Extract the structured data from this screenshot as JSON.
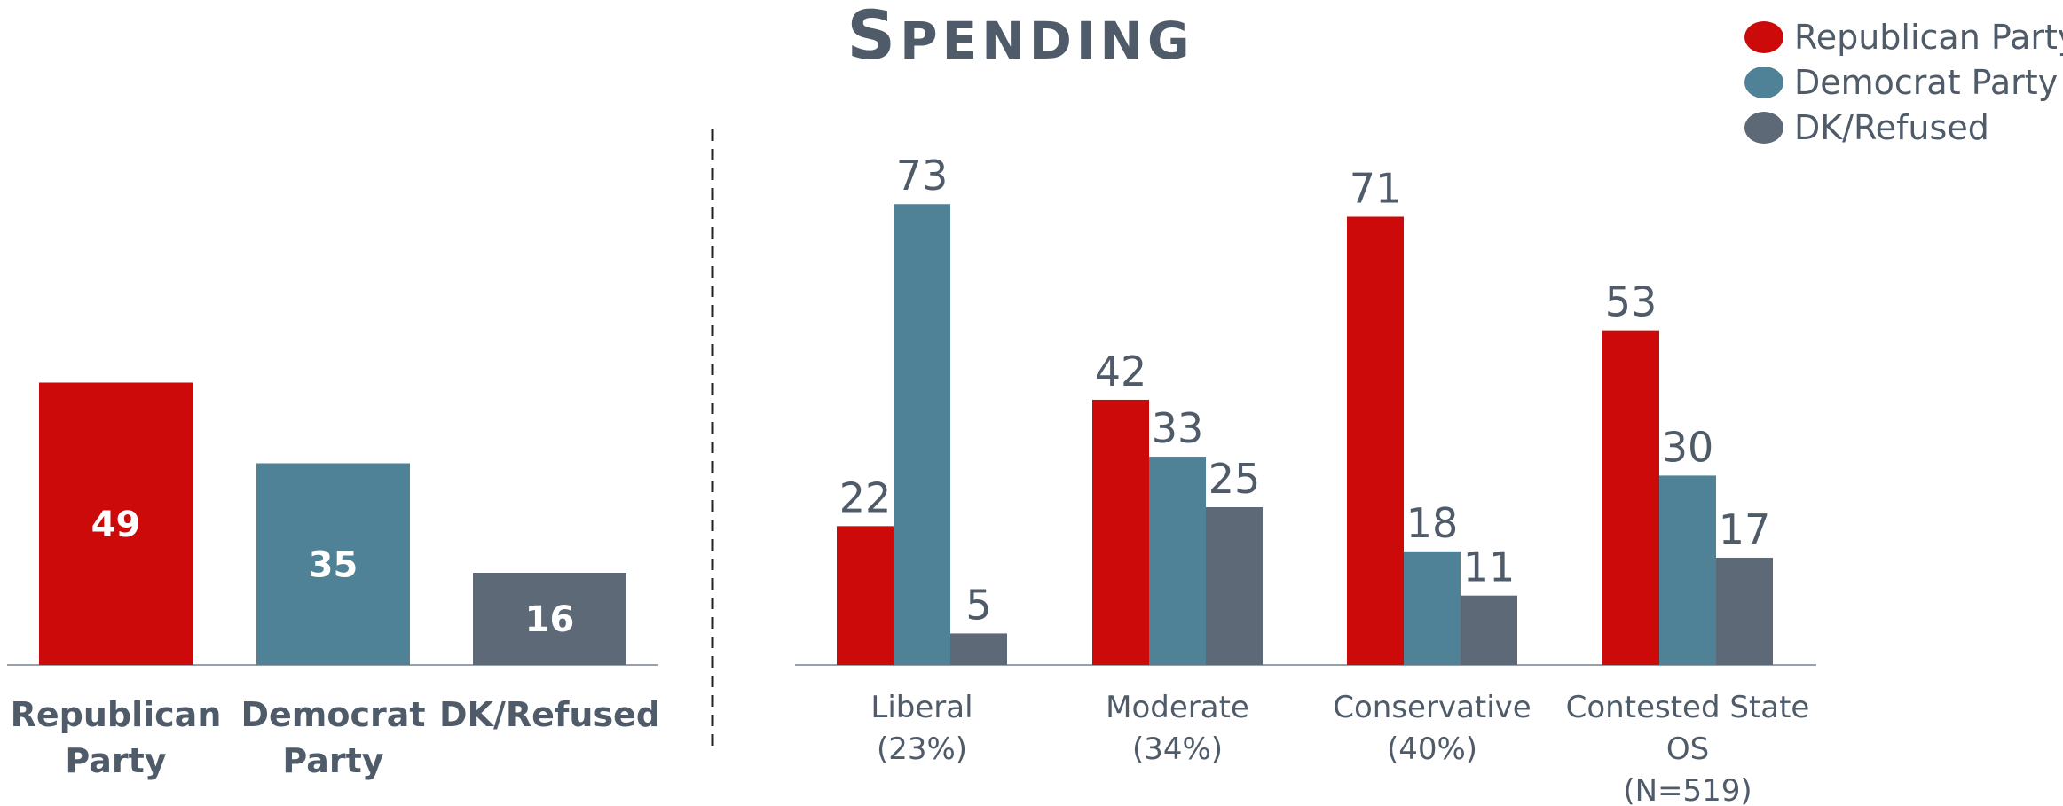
{
  "title_first": "S",
  "title_rest": "PENDING",
  "colors": {
    "republican": "#cc0a0a",
    "democrat": "#4f8296",
    "dk": "#5e6977",
    "text": "#4f5b68",
    "axis": "#9aa0a8"
  },
  "legend": [
    {
      "label": "Republican Party",
      "color": "#cc0a0a"
    },
    {
      "label": "Democrat Party",
      "color": "#4f8296"
    },
    {
      "label": "DK/Refused",
      "color": "#5e6977"
    }
  ],
  "chart_data": [
    {
      "type": "bar",
      "title": "",
      "categories": [
        [
          "Republican",
          "Party"
        ],
        [
          "Democrat",
          "Party"
        ],
        [
          "DK/Refused"
        ]
      ],
      "values": [
        49,
        35,
        16
      ],
      "value_labels": [
        "49",
        "35",
        "16"
      ],
      "colors": [
        "#cc0a0a",
        "#4f8296",
        "#5e6977"
      ],
      "ylim": [
        0,
        100
      ]
    },
    {
      "type": "bar",
      "title": "",
      "categories": [
        [
          "Liberal",
          "(23%)"
        ],
        [
          "Moderate",
          "(34%)"
        ],
        [
          "Conservative",
          "(40%)"
        ],
        [
          "Contested State",
          "OS",
          "(N=519)"
        ]
      ],
      "series": [
        {
          "name": "Republican Party",
          "values": [
            22,
            42,
            71,
            53
          ],
          "labels": [
            "22",
            "42",
            "71",
            "53"
          ],
          "color": "#cc0a0a"
        },
        {
          "name": "Democrat Party",
          "values": [
            73,
            33,
            18,
            30
          ],
          "labels": [
            "73",
            "33",
            "18",
            "30"
          ],
          "color": "#4f8296"
        },
        {
          "name": "DK/Refused",
          "values": [
            5,
            25,
            11,
            17
          ],
          "labels": [
            "5",
            "25",
            "11",
            "17"
          ],
          "color": "#5e6977"
        }
      ],
      "ylim": [
        0,
        100
      ]
    }
  ]
}
